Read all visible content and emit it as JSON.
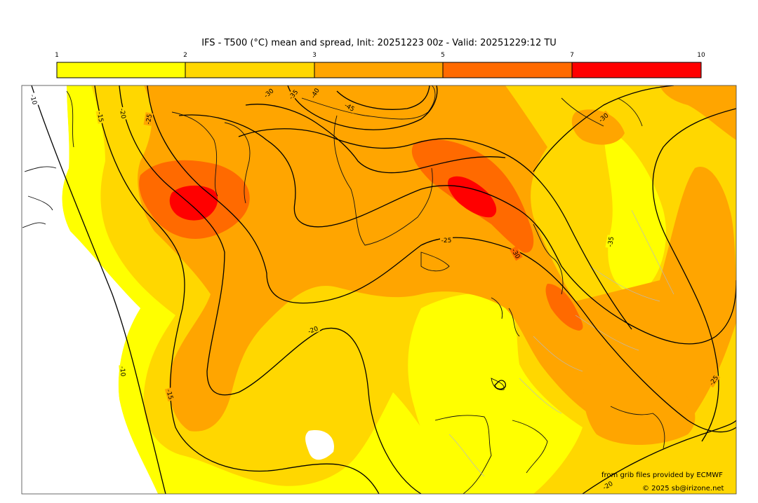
{
  "title": "IFS - T500 (°C) mean and spread, Init: 20251223 00z - Valid: 20251229:12 TU",
  "colorbar": {
    "ticks": [
      "1",
      "2",
      "3",
      "5",
      "7",
      "10"
    ],
    "colors": [
      "#ffff00",
      "#ffd700",
      "#ffa500",
      "#ff6a00",
      "#ff0000"
    ]
  },
  "contour_labels": [
    {
      "text": "-10"
    },
    {
      "text": "-15"
    },
    {
      "text": "-20"
    },
    {
      "text": "-25"
    },
    {
      "text": "-30"
    },
    {
      "text": "-35"
    },
    {
      "text": "-40"
    },
    {
      "text": "-45"
    },
    {
      "text": "-30"
    },
    {
      "text": "-25"
    },
    {
      "text": "-30"
    },
    {
      "text": "-35"
    },
    {
      "text": "-20"
    },
    {
      "text": "-15"
    },
    {
      "text": "-10"
    },
    {
      "text": "-25"
    },
    {
      "text": "-20"
    }
  ],
  "credits": {
    "source": "from grib files provided by ECMWF",
    "copyright": "© 2025 sb@irizone.net"
  }
}
